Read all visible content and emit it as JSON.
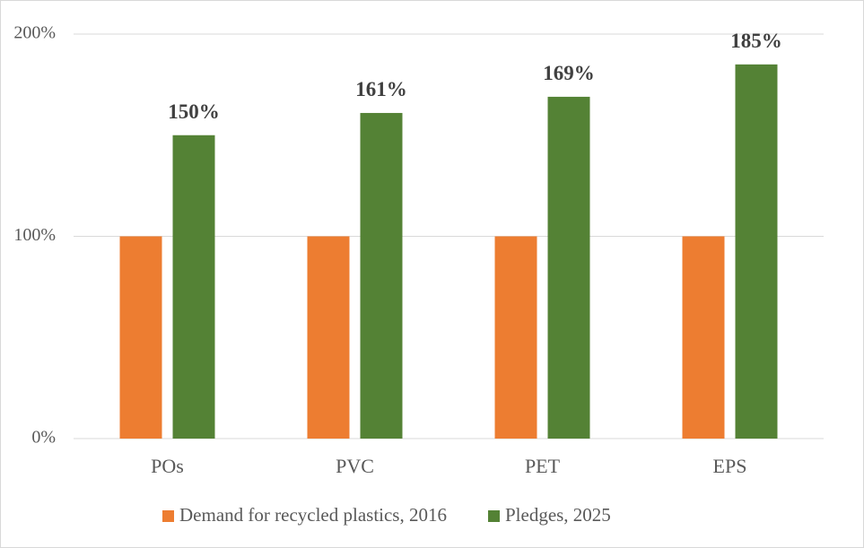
{
  "chart_data": {
    "type": "bar",
    "categories": [
      "POs",
      "PVC",
      "PET",
      "EPS"
    ],
    "series": [
      {
        "name": "Demand for recycled plastics, 2016",
        "color": "#ed7d31",
        "values": [
          100,
          100,
          100,
          100
        ]
      },
      {
        "name": "Pledges, 2025",
        "color": "#548235",
        "values": [
          150,
          161,
          169,
          185
        ],
        "value_labels": [
          "150%",
          "161%",
          "169%",
          "185%"
        ]
      }
    ],
    "ylim": [
      0,
      200
    ],
    "yticks": [
      {
        "value": 0,
        "label": "0%"
      },
      {
        "value": 100,
        "label": "100%"
      },
      {
        "value": 200,
        "label": "200%"
      }
    ],
    "grid": true,
    "legend": "bottom"
  }
}
